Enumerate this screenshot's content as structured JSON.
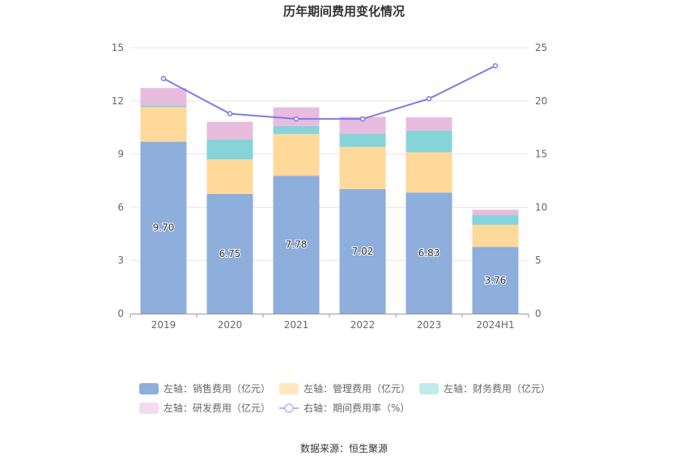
{
  "chart_data": {
    "type": "bar",
    "title": "历年期间费用变化情况",
    "categories": [
      "2019",
      "2020",
      "2021",
      "2022",
      "2023",
      "2024H1"
    ],
    "stacked": true,
    "series": [
      {
        "name": "左轴：销售费用（亿元）",
        "axis": "left",
        "type": "bar",
        "color": "#8eaedb",
        "values": [
          9.7,
          6.75,
          7.78,
          7.02,
          6.83,
          3.76
        ],
        "labels": [
          "9.70",
          "6.75",
          "7.78",
          "7.02",
          "6.83",
          "3.76"
        ]
      },
      {
        "name": "左轴：管理费用（亿元）",
        "axis": "left",
        "type": "bar",
        "color": "#ffd99a",
        "values": [
          1.95,
          1.95,
          2.35,
          2.38,
          2.27,
          1.25
        ]
      },
      {
        "name": "左轴：财务费用（亿元）",
        "axis": "left",
        "type": "bar",
        "color": "#86d4d8",
        "values": [
          0.1,
          1.12,
          0.45,
          0.75,
          1.22,
          0.55
        ]
      },
      {
        "name": "左轴：研发费用（亿元）",
        "axis": "left",
        "type": "bar",
        "color": "#e8bcdf",
        "values": [
          0.98,
          1.0,
          1.05,
          0.95,
          0.75,
          0.3
        ]
      },
      {
        "name": "右轴：期间费用率（%）",
        "axis": "right",
        "type": "line",
        "color": "#7b7be8",
        "values": [
          22.1,
          18.8,
          18.3,
          18.3,
          20.2,
          23.3
        ]
      }
    ],
    "yAxisLeft": {
      "min": 0,
      "max": 15,
      "ticks": [
        "0",
        "3",
        "6",
        "9",
        "12",
        "15"
      ]
    },
    "yAxisRight": {
      "min": 0,
      "max": 25,
      "ticks": [
        "0",
        "5",
        "10",
        "15",
        "20",
        "25"
      ]
    },
    "grid": true,
    "legend_position": "bottom",
    "source": "数据来源：恒生聚源"
  }
}
